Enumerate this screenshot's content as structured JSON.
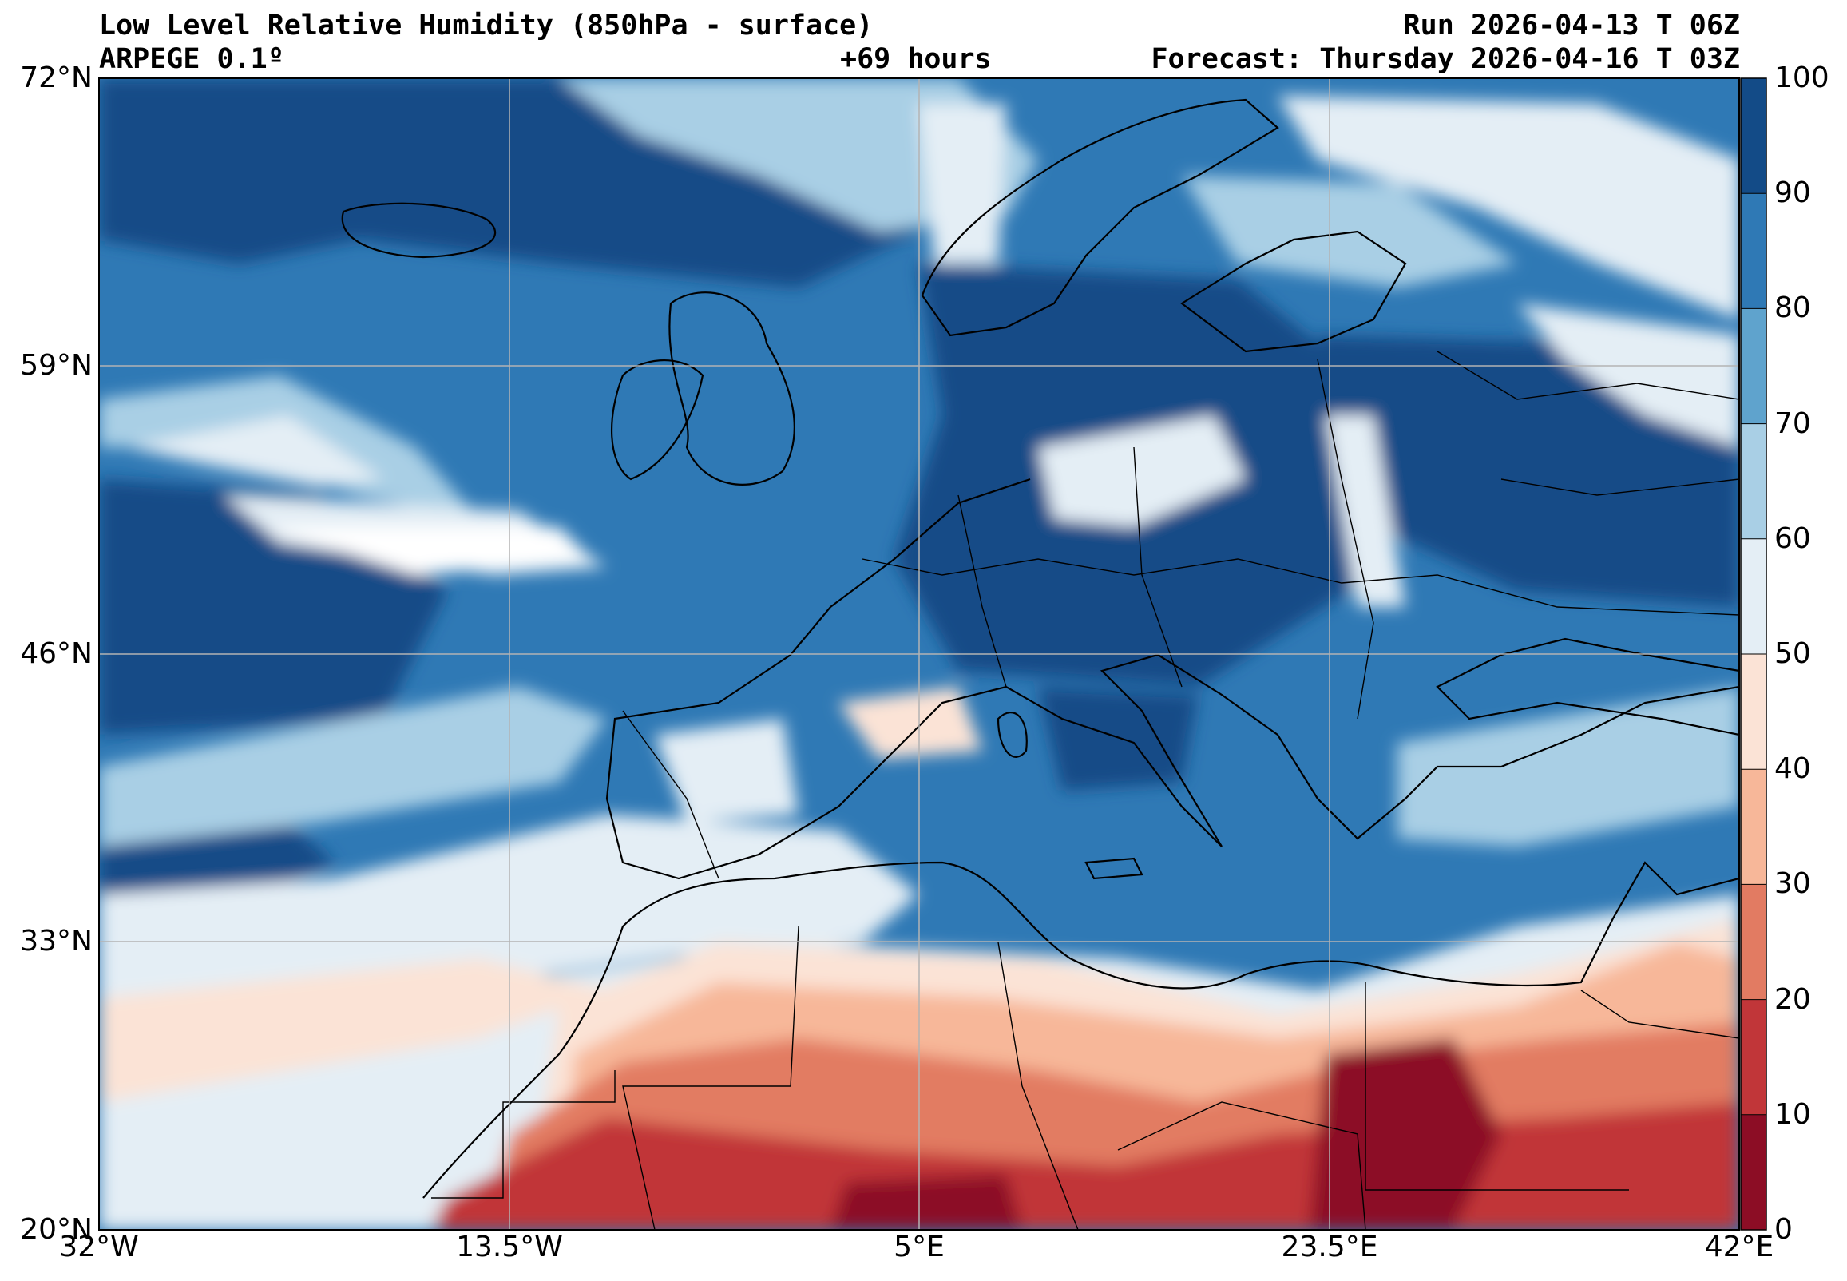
{
  "header": {
    "title": "Low Level Relative Humidity (850hPa - surface)",
    "model": "ARPEGE 0.1º",
    "lead": "+69 hours",
    "run": "Run 2026-04-13 T 06Z",
    "forecast": "Forecast: Thursday 2026-04-16 T 03Z"
  },
  "map": {
    "lon_range": [
      -32,
      42
    ],
    "lat_range": [
      20,
      72
    ],
    "lon_ticks": [
      "32°W",
      "13.5°W",
      "5°E",
      "23.5°E",
      "42°E"
    ],
    "lon_tick_values": [
      -32,
      -13.5,
      5,
      23.5,
      42
    ],
    "lat_ticks": [
      "72°N",
      "59°N",
      "46°N",
      "33°N",
      "20°N"
    ],
    "lat_tick_values": [
      72,
      59,
      46,
      33,
      20
    ],
    "gridlines": true
  },
  "colorbar": {
    "labels": [
      "0",
      "10",
      "20",
      "30",
      "40",
      "50",
      "60",
      "70",
      "80",
      "90",
      "100"
    ],
    "levels": [
      0,
      10,
      20,
      30,
      40,
      50,
      60,
      70,
      80,
      90,
      100
    ],
    "colors": [
      "#8c0d25",
      "#c13639",
      "#e27b62",
      "#f7b799",
      "#fbe3d6",
      "#e4eef5",
      "#a9cfe5",
      "#5fa3cd",
      "#2f79b5",
      "#134b87"
    ]
  }
}
